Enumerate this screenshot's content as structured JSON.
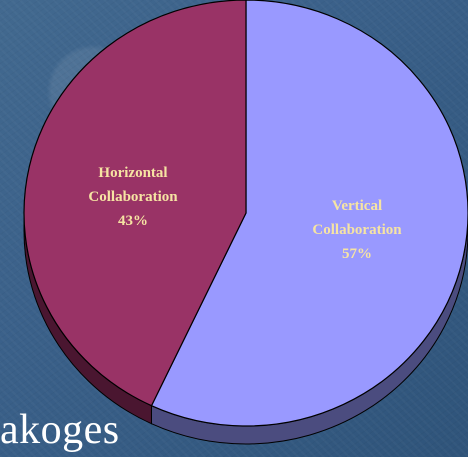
{
  "chart_data": {
    "type": "pie",
    "categories": [
      "Horizontal Collaboration",
      "Vertical Collaboration"
    ],
    "values": [
      43,
      57
    ],
    "labels": [
      {
        "line1": "Horizontal",
        "line2": "Collaboration",
        "line3": "43%"
      },
      {
        "line1": "Vertical",
        "line2": "Collaboration",
        "line3": "57%"
      }
    ],
    "colors": {
      "horizontal_top": "#993366",
      "horizontal_side": "#4a1630",
      "vertical_top": "#9999ff",
      "vertical_side": "#4b4c7f",
      "edge": "#000000",
      "label": "#f6e4a3"
    }
  },
  "background": {
    "partial_text": "akoges"
  }
}
